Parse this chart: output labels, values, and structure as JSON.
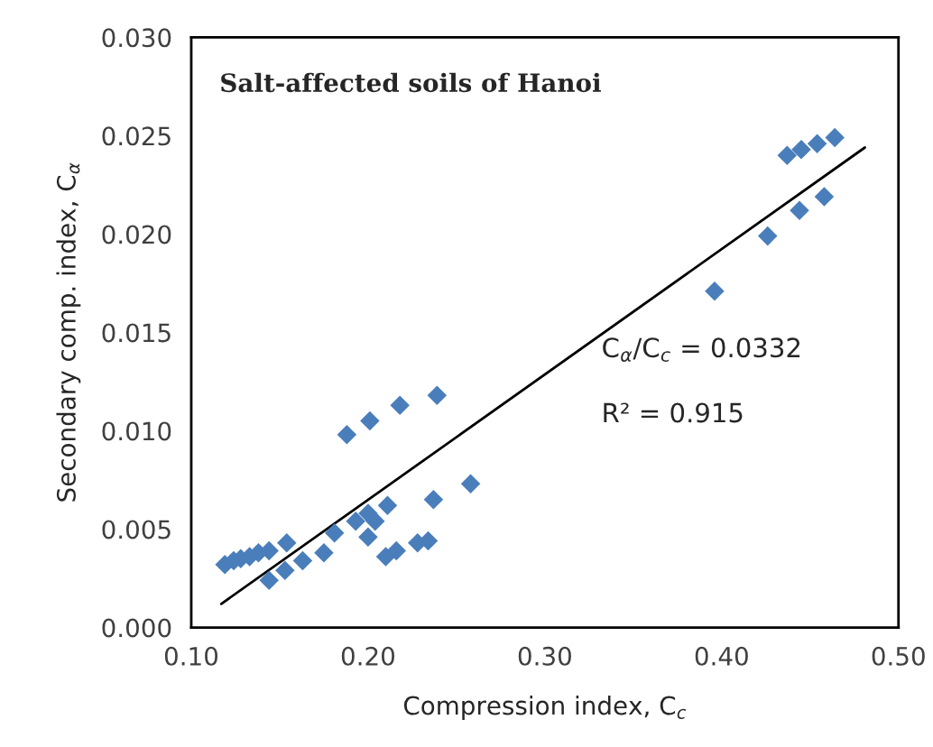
{
  "chart_data": {
    "type": "scatter",
    "title": "Salt-affected soils of Hanoi",
    "xlabel": "Compression index, C$_{c}$",
    "ylabel": "Secondary comp. index, C$_{α}$",
    "xlim": [
      0.1,
      0.5
    ],
    "xticks": [
      {
        "value": 0.1,
        "label": "0.10"
      },
      {
        "value": 0.2,
        "label": "0.20"
      },
      {
        "value": 0.3,
        "label": "0.30"
      },
      {
        "value": 0.4,
        "label": "0.40"
      },
      {
        "value": 0.5,
        "label": "0.50"
      }
    ],
    "ylim": [
      0,
      0.03
    ],
    "yticks": [
      {
        "value": 0,
        "label": "0.000"
      },
      {
        "value": 0.005,
        "label": "0.005"
      },
      {
        "value": 0.01,
        "label": "0.010"
      },
      {
        "value": 0.015,
        "label": "0.015"
      },
      {
        "value": 0.02,
        "label": "0.020"
      },
      {
        "value": 0.025,
        "label": "0.025"
      },
      {
        "value": 0.03,
        "label": "0.030"
      }
    ],
    "grid": false,
    "marker": "diamond",
    "series": [
      {
        "color": "#4a7ebb",
        "x": [
          0.437,
          0.445,
          0.454,
          0.464,
          0.444,
          0.458,
          0.426,
          0.396,
          0.188,
          0.201,
          0.218,
          0.239,
          0.258,
          0.237,
          0.211,
          0.2,
          0.204,
          0.193,
          0.181,
          0.2,
          0.175,
          0.163,
          0.153,
          0.144,
          0.154,
          0.144,
          0.138,
          0.133,
          0.128,
          0.124,
          0.119,
          0.21,
          0.216,
          0.228,
          0.234
        ],
        "values": [
          0.024,
          0.0243,
          0.0246,
          0.0249,
          0.0212,
          0.0219,
          0.0199,
          0.0171,
          0.0098,
          0.0105,
          0.0113,
          0.0118,
          0.0073,
          0.0065,
          0.0062,
          0.0058,
          0.0054,
          0.0054,
          0.0048,
          0.0046,
          0.0038,
          0.0034,
          0.0029,
          0.0024,
          0.0043,
          0.0039,
          0.0038,
          0.0036,
          0.0035,
          0.0034,
          0.0032,
          0.0036,
          0.0039,
          0.0043,
          0.0044
        ]
      },
      {
        "type": "line",
        "color": "#000000",
        "x": [
          0.117,
          0.481
        ],
        "values": [
          0.0012,
          0.0244
        ],
        "marker": "none",
        "line_style": "solid"
      }
    ],
    "annotations": [
      "C$_{α}$/C$_{c}$ = 0.0332",
      "R² = 0.915"
    ]
  }
}
